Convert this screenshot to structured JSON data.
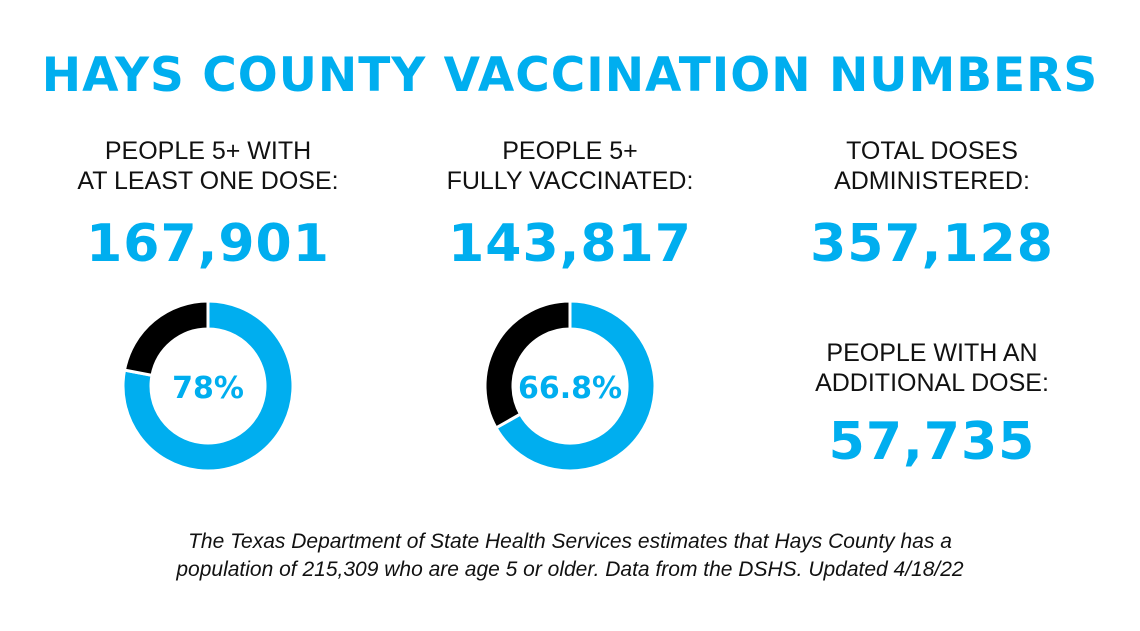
{
  "title": "HAYS COUNTY VACCINATION NUMBERS",
  "colors": {
    "accent": "#00aeef",
    "remainder": "#000000"
  },
  "stats": [
    {
      "label1": "PEOPLE  5+ WITH",
      "label2": "AT LEAST ONE DOSE:",
      "value": "167,901"
    },
    {
      "label1": "PEOPLE 5+",
      "label2": "FULLY VACCINATED:",
      "value": "143,817"
    },
    {
      "label1": "TOTAL DOSES",
      "label2": "ADMINISTERED:",
      "value": "357,128"
    },
    {
      "label1": "PEOPLE WITH AN",
      "label2": "ADDITIONAL DOSE:",
      "value": "57,735"
    }
  ],
  "chart_data": [
    {
      "type": "pie",
      "donut": true,
      "center_label": "78%",
      "values": [
        78,
        22
      ]
    },
    {
      "type": "pie",
      "donut": true,
      "center_label": "66.8%",
      "values": [
        66.8,
        33.2
      ]
    }
  ],
  "footnote": {
    "line1": "The Texas Department of State Health Services estimates that Hays County has a",
    "line2": "population of 215,309 who are age 5 or older. Data from the DSHS. Updated 4/18/22"
  }
}
